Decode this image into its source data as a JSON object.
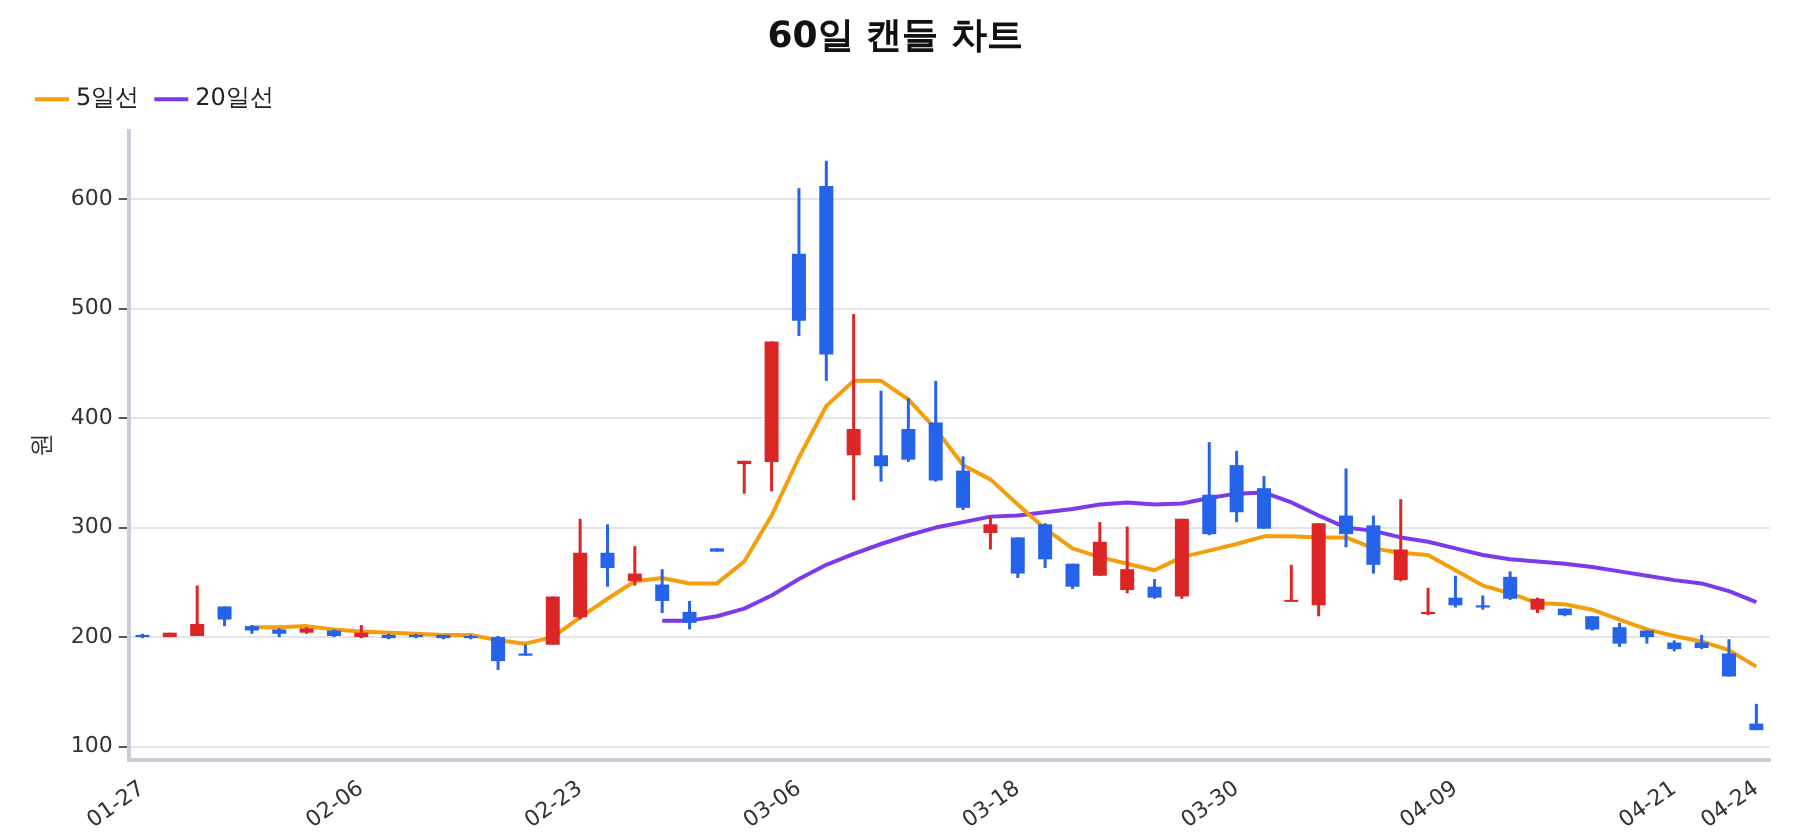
{
  "chart_data": {
    "type": "candlestick",
    "title": "60일 캔들 차트",
    "ylabel": "원",
    "categories": [
      "01-27",
      null,
      null,
      null,
      null,
      null,
      null,
      null,
      "02-06",
      null,
      null,
      null,
      null,
      null,
      null,
      null,
      "02-23",
      null,
      null,
      null,
      null,
      null,
      null,
      null,
      "03-06",
      null,
      null,
      null,
      null,
      null,
      null,
      null,
      "03-18",
      null,
      null,
      null,
      null,
      null,
      null,
      null,
      "03-30",
      null,
      null,
      null,
      null,
      null,
      null,
      null,
      "04-09",
      null,
      null,
      null,
      null,
      null,
      null,
      null,
      "04-21",
      null,
      null,
      "04-24"
    ],
    "ohlc": [
      [
        202,
        203,
        199,
        200
      ],
      [
        200,
        204,
        200,
        204
      ],
      [
        201,
        247,
        201,
        212
      ],
      [
        228,
        228,
        210,
        216
      ],
      [
        210,
        211,
        203,
        206
      ],
      [
        207,
        208,
        200,
        203
      ],
      [
        204,
        209,
        203,
        208
      ],
      [
        206,
        207,
        200,
        201
      ],
      [
        200,
        211,
        199,
        204
      ],
      [
        202,
        203,
        198,
        199
      ],
      [
        202,
        203,
        199,
        200
      ],
      [
        202,
        202,
        198,
        199
      ],
      [
        201,
        202,
        198,
        199
      ],
      [
        200,
        201,
        170,
        178
      ],
      [
        185,
        193,
        183,
        183
      ],
      [
        193,
        237,
        193,
        237
      ],
      [
        218,
        308,
        216,
        277
      ],
      [
        277,
        303,
        246,
        263
      ],
      [
        251,
        283,
        247,
        258
      ],
      [
        248,
        262,
        222,
        233
      ],
      [
        223,
        233,
        207,
        213
      ],
      [
        281,
        281,
        278,
        278
      ],
      [
        358,
        361,
        331,
        361
      ],
      [
        360,
        470,
        333,
        470
      ],
      [
        550,
        610,
        475,
        489
      ],
      [
        612,
        635,
        434,
        458
      ],
      [
        366,
        495,
        325,
        390
      ],
      [
        366,
        425,
        342,
        356
      ],
      [
        390,
        418,
        360,
        362
      ],
      [
        396,
        434,
        342,
        343
      ],
      [
        352,
        365,
        316,
        318
      ],
      [
        295,
        311,
        280,
        303
      ],
      [
        291,
        291,
        254,
        258
      ],
      [
        303,
        304,
        263,
        271
      ],
      [
        267,
        267,
        244,
        246
      ],
      [
        256,
        305,
        256,
        287
      ],
      [
        243,
        301,
        240,
        262
      ],
      [
        246,
        253,
        235,
        236
      ],
      [
        237,
        308,
        235,
        308
      ],
      [
        330,
        378,
        293,
        294
      ],
      [
        357,
        370,
        305,
        314
      ],
      [
        336,
        347,
        299,
        299
      ],
      [
        233,
        266,
        233,
        234
      ],
      [
        229,
        304,
        219,
        304
      ],
      [
        311,
        354,
        282,
        294
      ],
      [
        302,
        311,
        258,
        266
      ],
      [
        252,
        326,
        251,
        280
      ],
      [
        221,
        245,
        220,
        223
      ],
      [
        236,
        256,
        227,
        229
      ],
      [
        229,
        238,
        225,
        227
      ],
      [
        255,
        260,
        234,
        235
      ],
      [
        225,
        236,
        222,
        235
      ],
      [
        226,
        226,
        219,
        220
      ],
      [
        219,
        219,
        206,
        207
      ],
      [
        209,
        213,
        191,
        194
      ],
      [
        206,
        206,
        194,
        200
      ],
      [
        195,
        197,
        187,
        189
      ],
      [
        195,
        202,
        189,
        190
      ],
      [
        185,
        198,
        164,
        164
      ],
      [
        121,
        139,
        115,
        115
      ]
    ],
    "colors": [
      "#2563eb",
      "#dc2626",
      "#dc2626",
      "#2563eb",
      "#2563eb",
      "#2563eb",
      "#dc2626",
      "#2563eb",
      "#dc2626",
      "#2563eb",
      "#2563eb",
      "#2563eb",
      "#2563eb",
      "#2563eb",
      "#2563eb",
      "#dc2626",
      "#dc2626",
      "#2563eb",
      "#dc2626",
      "#2563eb",
      "#2563eb",
      "#2563eb",
      "#dc2626",
      "#dc2626",
      "#2563eb",
      "#2563eb",
      "#dc2626",
      "#2563eb",
      "#2563eb",
      "#2563eb",
      "#2563eb",
      "#dc2626",
      "#2563eb",
      "#2563eb",
      "#2563eb",
      "#dc2626",
      "#dc2626",
      "#2563eb",
      "#dc2626",
      "#2563eb",
      "#2563eb",
      "#2563eb",
      "#dc2626",
      "#dc2626",
      "#2563eb",
      "#2563eb",
      "#dc2626",
      "#dc2626",
      "#2563eb",
      "#2563eb",
      "#2563eb",
      "#dc2626",
      "#2563eb",
      "#2563eb",
      "#2563eb",
      "#2563eb",
      "#2563eb",
      "#2563eb",
      "#2563eb",
      "#2563eb"
    ],
    "series": [
      {
        "name": "5일선",
        "type": "line",
        "color": "#f59e0b",
        "values": [
          null,
          null,
          null,
          null,
          209,
          209,
          210,
          207,
          205,
          204,
          203,
          202,
          202,
          197,
          194,
          200,
          218,
          235,
          251,
          254,
          249,
          249,
          269,
          311,
          364,
          411,
          434,
          434,
          417,
          390,
          357,
          344,
          321,
          299,
          281,
          273,
          267,
          261,
          273,
          279,
          285,
          292,
          292,
          291,
          291,
          281,
          277,
          275,
          261,
          247,
          240,
          231,
          230,
          225,
          216,
          207,
          201,
          196,
          188,
          173
        ]
      },
      {
        "name": "20일선",
        "type": "line",
        "color": "#7c3aed",
        "values": [
          null,
          null,
          null,
          null,
          null,
          null,
          null,
          null,
          null,
          null,
          null,
          null,
          null,
          null,
          null,
          null,
          null,
          null,
          null,
          215,
          215,
          219,
          226,
          238,
          253,
          266,
          276,
          285,
          293,
          300,
          305,
          310,
          311,
          314,
          317,
          321,
          323,
          321,
          322,
          327,
          331,
          332,
          323,
          311,
          300,
          297,
          291,
          287,
          281,
          275,
          271,
          269,
          267,
          264,
          260,
          256,
          252,
          249,
          242,
          232
        ]
      }
    ],
    "ylim": [
      88,
      662
    ],
    "yticks": [
      100,
      200,
      300,
      400,
      500,
      600
    ],
    "grid": "y",
    "legend": "top left"
  }
}
